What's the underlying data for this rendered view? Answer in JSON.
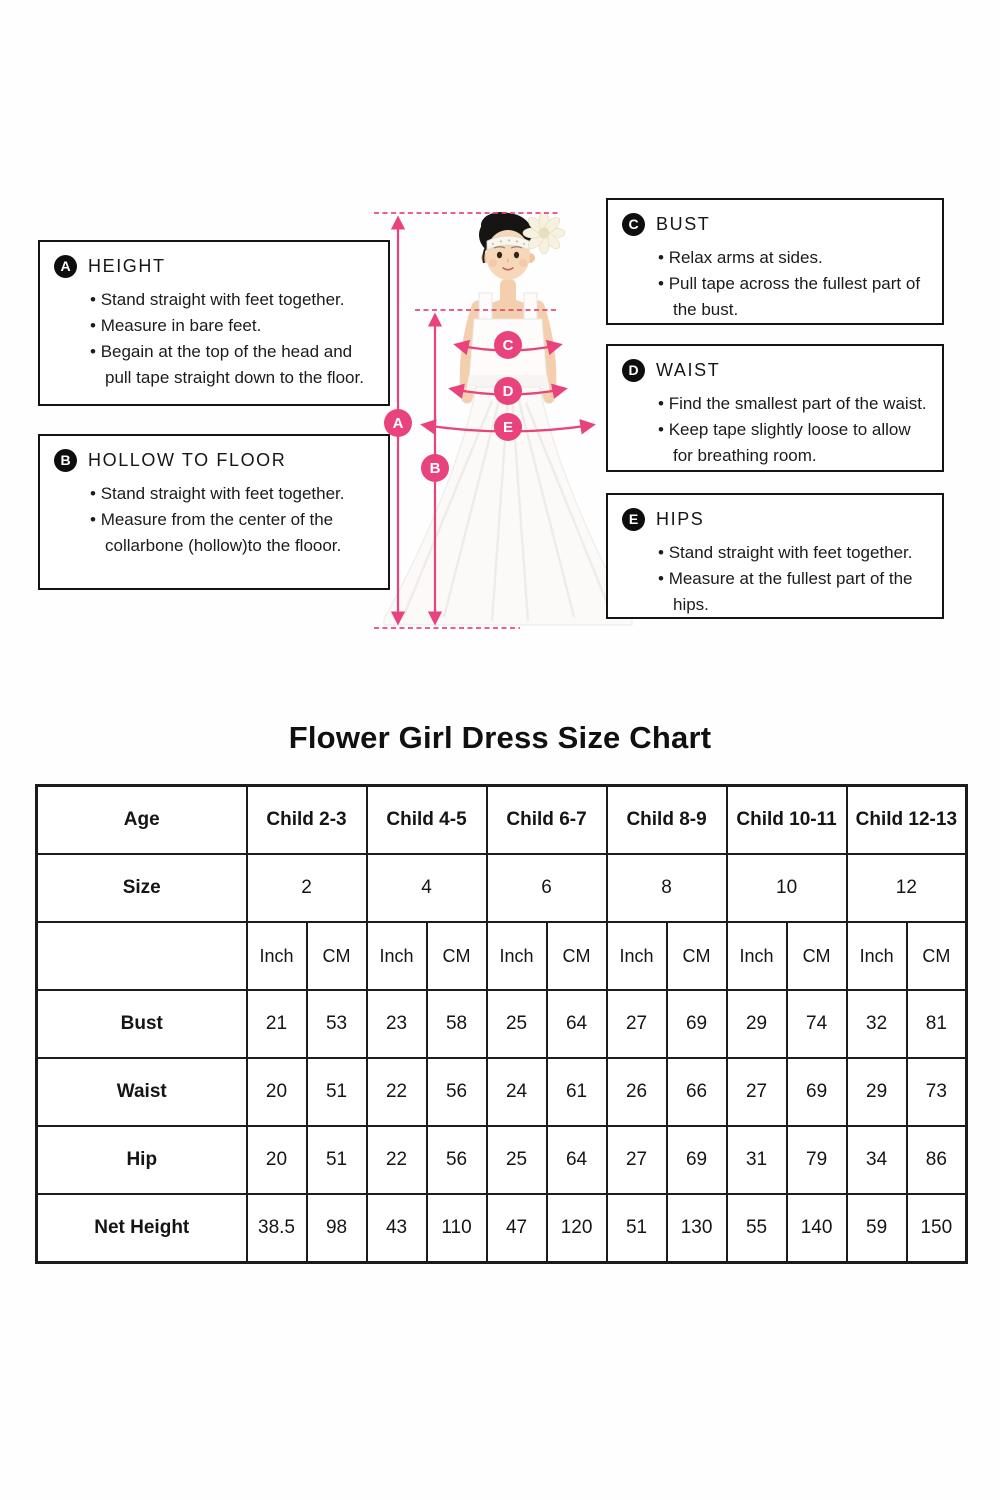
{
  "page": {
    "title": "Flower Girl Dress Size Chart"
  },
  "colors": {
    "accent_pink": "#e8437d",
    "ink": "#1b1b1b"
  },
  "instructions": [
    {
      "id": "A",
      "label": "HEIGHT",
      "bullets": [
        "Stand straight with feet together.",
        "Measure in bare feet.",
        "Begain at the top of the head and pull tape straight down to the floor."
      ]
    },
    {
      "id": "B",
      "label": "HOLLOW TO FLOOR",
      "bullets": [
        "Stand straight with feet together.",
        "Measure from the center of the collarbone (hollow)to the flooor."
      ]
    },
    {
      "id": "C",
      "label": "BUST",
      "bullets": [
        "Relax arms at sides.",
        "Pull tape across the fullest part of the bust."
      ]
    },
    {
      "id": "D",
      "label": "WAIST",
      "bullets": [
        "Find the smallest part of the waist.",
        "Keep tape slightly loose to allow for breathing room."
      ]
    },
    {
      "id": "E",
      "label": "HIPS",
      "bullets": [
        "Stand straight with feet together.",
        "Measure at the fullest part of the hips."
      ]
    }
  ],
  "figure": {
    "markers": [
      "A",
      "B",
      "C",
      "D",
      "E"
    ]
  },
  "chart_data": {
    "type": "table",
    "title": "Flower Girl Dress Size Chart",
    "age_row_label": "Age",
    "size_row_label": "Size",
    "unit_labels": [
      "Inch",
      "CM"
    ],
    "ages": [
      "Child 2-3",
      "Child 4-5",
      "Child 6-7",
      "Child 8-9",
      "Child 10-11",
      "Child 12-13"
    ],
    "sizes": [
      "2",
      "4",
      "6",
      "8",
      "10",
      "12"
    ],
    "rows": [
      {
        "label": "Bust",
        "inch": [
          "21",
          "23",
          "25",
          "27",
          "29",
          "32"
        ],
        "cm": [
          "53",
          "58",
          "64",
          "69",
          "74",
          "81"
        ]
      },
      {
        "label": "Waist",
        "inch": [
          "20",
          "22",
          "24",
          "26",
          "27",
          "29"
        ],
        "cm": [
          "51",
          "56",
          "61",
          "66",
          "69",
          "73"
        ]
      },
      {
        "label": "Hip",
        "inch": [
          "20",
          "22",
          "25",
          "27",
          "31",
          "34"
        ],
        "cm": [
          "51",
          "56",
          "64",
          "69",
          "79",
          "86"
        ]
      },
      {
        "label": "Net Height",
        "inch": [
          "38.5",
          "43",
          "47",
          "51",
          "55",
          "59"
        ],
        "cm": [
          "98",
          "110",
          "120",
          "130",
          "140",
          "150"
        ]
      }
    ]
  }
}
